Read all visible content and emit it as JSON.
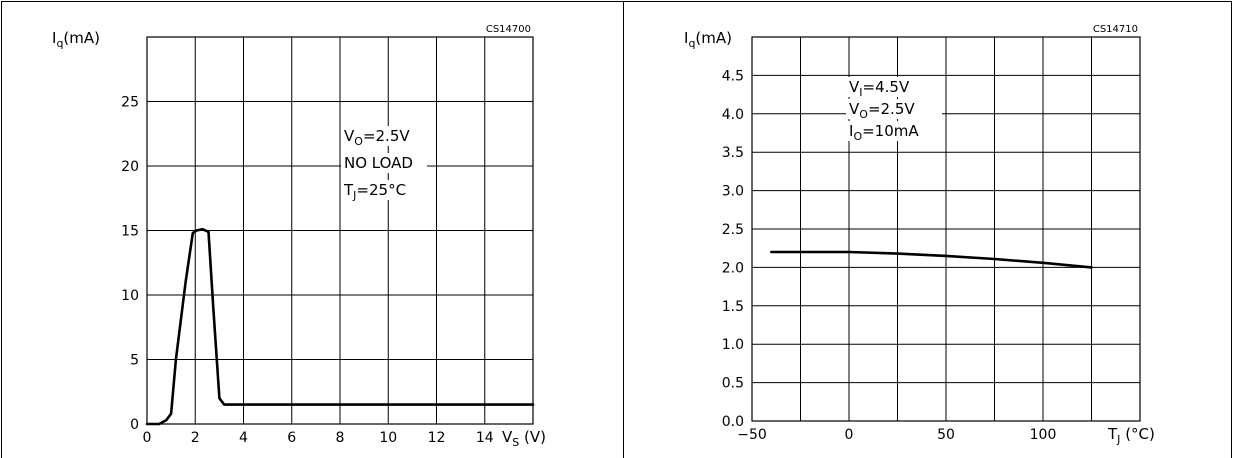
{
  "chart_data": [
    {
      "type": "line",
      "code": "CS14700",
      "ylabel_main": "I",
      "ylabel_sub": "q",
      "ylabel_unit": "(mA)",
      "xlabel_main": "V",
      "xlabel_sub": "S",
      "xlabel_unit": " (V)",
      "xlim": [
        0,
        16
      ],
      "ylim": [
        0,
        30
      ],
      "xticks": [
        0,
        2,
        4,
        6,
        8,
        10,
        12,
        14
      ],
      "yticks": [
        0,
        5,
        10,
        15,
        20,
        25
      ],
      "grid": true,
      "annotations": [
        {
          "main": "V",
          "sub": "O",
          "rest": "=2.5V"
        },
        {
          "main": "NO LOAD",
          "sub": "",
          "rest": ""
        },
        {
          "main": "T",
          "sub": "J",
          "rest": "=25°C"
        }
      ],
      "series": [
        {
          "x": [
            0,
            0.5,
            0.8,
            1.0,
            1.2,
            1.6,
            1.9,
            2.05,
            2.3,
            2.55,
            2.75,
            3.0,
            3.2,
            3.5,
            4,
            6,
            8,
            10,
            12,
            14,
            16
          ],
          "y": [
            0,
            0,
            0.3,
            0.8,
            5,
            11,
            14.8,
            15,
            15.1,
            14.9,
            9,
            2,
            1.5,
            1.5,
            1.5,
            1.5,
            1.5,
            1.5,
            1.5,
            1.5,
            1.5
          ]
        }
      ]
    },
    {
      "type": "line",
      "code": "CS14710",
      "ylabel_main": "I",
      "ylabel_sub": "q",
      "ylabel_unit": "(mA)",
      "xlabel_main": "T",
      "xlabel_sub": "J",
      "xlabel_unit": " (°C)",
      "xlim": [
        -50,
        150
      ],
      "ylim": [
        0,
        5
      ],
      "xticks": [
        -50,
        0,
        50,
        100
      ],
      "xticklabels": [
        "−50",
        "0",
        "50",
        "100"
      ],
      "yticks": [
        0,
        0.5,
        1,
        1.5,
        2,
        2.5,
        3,
        3.5,
        4,
        4.5
      ],
      "yticklabels": [
        "0.0",
        "0.5",
        "1.0",
        "1.5",
        "2.0",
        "2.5",
        "3.0",
        "3.5",
        "4.0",
        "4.5"
      ],
      "grid": true,
      "annotations": [
        {
          "main": "V",
          "sub": "I",
          "rest": "=4.5V"
        },
        {
          "main": "V",
          "sub": "O",
          "rest": "=2.5V"
        },
        {
          "main": "I",
          "sub": "O",
          "rest": "=10mA"
        }
      ],
      "series": [
        {
          "x": [
            -40,
            -25,
            0,
            25,
            50,
            75,
            100,
            125
          ],
          "y": [
            2.2,
            2.2,
            2.2,
            2.18,
            2.15,
            2.11,
            2.06,
            2.0
          ]
        }
      ]
    }
  ]
}
